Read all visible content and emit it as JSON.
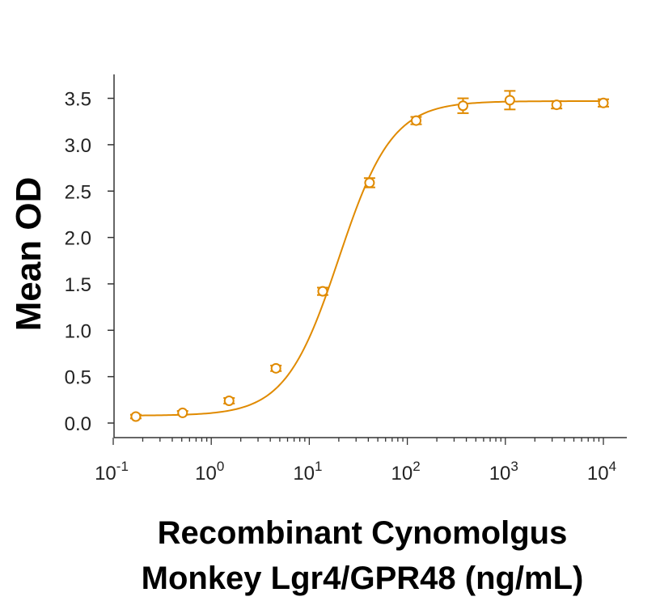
{
  "chart_data": {
    "type": "scatter",
    "title": "",
    "ylabel": "Mean OD",
    "xlabel_lines": [
      "Recombinant Cynomolgus",
      "Monkey Lgr4/GPR48 (ng/mL)"
    ],
    "xscale": "log",
    "xlim": [
      0.1,
      10000
    ],
    "ylim": [
      0,
      3.6
    ],
    "y_ticks": [
      "0.0",
      "0.5",
      "1.0",
      "1.5",
      "2.0",
      "2.5",
      "3.0",
      "3.5"
    ],
    "x_ticks": [
      {
        "value": 0.1,
        "base": "10",
        "exp": "-1"
      },
      {
        "value": 1,
        "base": "10",
        "exp": "0"
      },
      {
        "value": 10,
        "base": "10",
        "exp": "1"
      },
      {
        "value": 100,
        "base": "10",
        "exp": "2"
      },
      {
        "value": 1000,
        "base": "10",
        "exp": "3"
      },
      {
        "value": 10000,
        "base": "10",
        "exp": "4"
      }
    ],
    "grid": false,
    "legend": "none",
    "color": "#E08A00",
    "series": [
      {
        "points": [
          {
            "x": 0.17,
            "y": 0.07,
            "err": 0.02
          },
          {
            "x": 0.51,
            "y": 0.11,
            "err": 0.02
          },
          {
            "x": 1.52,
            "y": 0.24,
            "err": 0.03
          },
          {
            "x": 4.57,
            "y": 0.59,
            "err": 0.03
          },
          {
            "x": 13.7,
            "y": 1.42,
            "err": 0.04
          },
          {
            "x": 41.2,
            "y": 2.59,
            "err": 0.05
          },
          {
            "x": 123,
            "y": 3.26,
            "err": 0.04
          },
          {
            "x": 370,
            "y": 3.42,
            "err": 0.08
          },
          {
            "x": 1111,
            "y": 3.48,
            "err": 0.1
          },
          {
            "x": 3333,
            "y": 3.43,
            "err": 0.04
          },
          {
            "x": 10000,
            "y": 3.45,
            "err": 0.04
          }
        ],
        "fit": {
          "model": "4PL",
          "bottom": 0.08,
          "top": 3.47,
          "ec50": 20,
          "hill": 1.6
        }
      }
    ]
  }
}
